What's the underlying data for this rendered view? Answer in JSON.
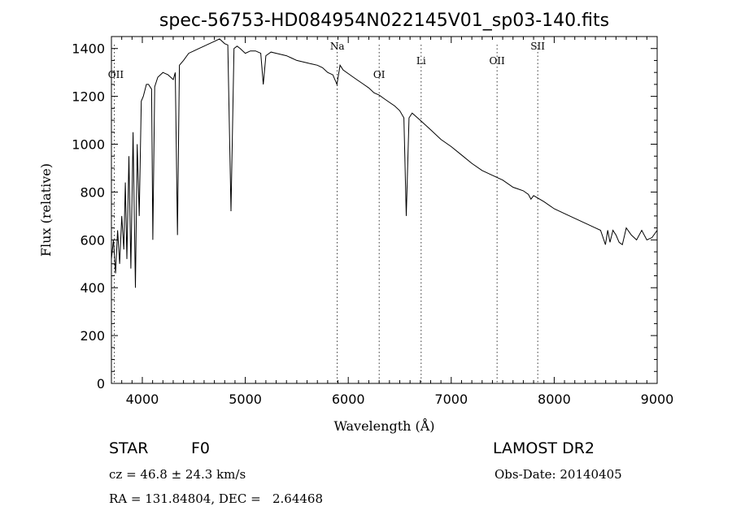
{
  "chart_data": {
    "type": "line",
    "title": "spec-56753-HD084954N022145V01_sp03-140.fits",
    "xlabel": "Wavelength (Å)",
    "ylabel": "Flux (relative)",
    "xlim": [
      3700,
      9000
    ],
    "ylim": [
      0,
      1450
    ],
    "xticks": [
      4000,
      5000,
      6000,
      7000,
      8000,
      9000
    ],
    "yticks": [
      0,
      200,
      400,
      600,
      800,
      1000,
      1200,
      1400
    ],
    "grid": false,
    "series": [
      {
        "x": [
          3700,
          3720,
          3740,
          3760,
          3780,
          3800,
          3820,
          3835,
          3850,
          3870,
          3889,
          3910,
          3933,
          3950,
          3970,
          3990,
          4010,
          4040,
          4060,
          4090,
          4102,
          4120,
          4150,
          4200,
          4250,
          4300,
          4320,
          4341,
          4360,
          4400,
          4450,
          4500,
          4550,
          4600,
          4650,
          4700,
          4750,
          4800,
          4830,
          4861,
          4890,
          4920,
          4950,
          5000,
          5050,
          5100,
          5150,
          5175,
          5200,
          5250,
          5300,
          5350,
          5400,
          5450,
          5500,
          5550,
          5600,
          5650,
          5700,
          5750,
          5800,
          5850,
          5890,
          5920,
          5950,
          6000,
          6050,
          6100,
          6150,
          6200,
          6250,
          6300,
          6350,
          6400,
          6450,
          6500,
          6540,
          6563,
          6590,
          6620,
          6700,
          6800,
          6900,
          7000,
          7100,
          7200,
          7300,
          7400,
          7500,
          7600,
          7700,
          7750,
          7774,
          7800,
          7900,
          8000,
          8100,
          8200,
          8300,
          8400,
          8450,
          8498,
          8520,
          8542,
          8570,
          8600,
          8630,
          8662,
          8700,
          8750,
          8800,
          8850,
          8900,
          8950,
          9000
        ],
        "y": [
          520,
          600,
          460,
          640,
          500,
          700,
          560,
          840,
          520,
          950,
          480,
          1050,
          400,
          1000,
          700,
          1180,
          1200,
          1250,
          1250,
          1230,
          600,
          1240,
          1280,
          1300,
          1290,
          1270,
          1300,
          620,
          1330,
          1350,
          1380,
          1390,
          1400,
          1410,
          1420,
          1430,
          1440,
          1420,
          1415,
          720,
          1400,
          1410,
          1400,
          1380,
          1390,
          1390,
          1380,
          1250,
          1370,
          1385,
          1380,
          1375,
          1370,
          1360,
          1350,
          1345,
          1340,
          1335,
          1330,
          1320,
          1300,
          1290,
          1250,
          1330,
          1310,
          1295,
          1280,
          1265,
          1250,
          1235,
          1215,
          1205,
          1190,
          1175,
          1160,
          1140,
          1110,
          700,
          1110,
          1130,
          1100,
          1060,
          1020,
          990,
          955,
          920,
          890,
          870,
          850,
          820,
          805,
          790,
          770,
          785,
          760,
          730,
          710,
          690,
          670,
          650,
          640,
          580,
          640,
          590,
          640,
          620,
          590,
          580,
          650,
          620,
          600,
          640,
          600,
          610,
          640
        ]
      }
    ],
    "annotations": [
      {
        "label": "OII",
        "x": 3727
      },
      {
        "label": "Na",
        "x": 5893
      },
      {
        "label": "OI",
        "x": 6300
      },
      {
        "label": "Li",
        "x": 6708
      },
      {
        "label": "OII",
        "x": 7445
      },
      {
        "label": "SII",
        "x": 7840
      }
    ]
  },
  "info": {
    "object_class": "STAR",
    "subclass": "F0",
    "cz": "cz = 46.8 ± 24.3 km/s",
    "coords": "RA = 131.84804, DEC =   2.64468",
    "survey": "LAMOST DR2",
    "obs_date": "Obs-Date: 20140405"
  }
}
